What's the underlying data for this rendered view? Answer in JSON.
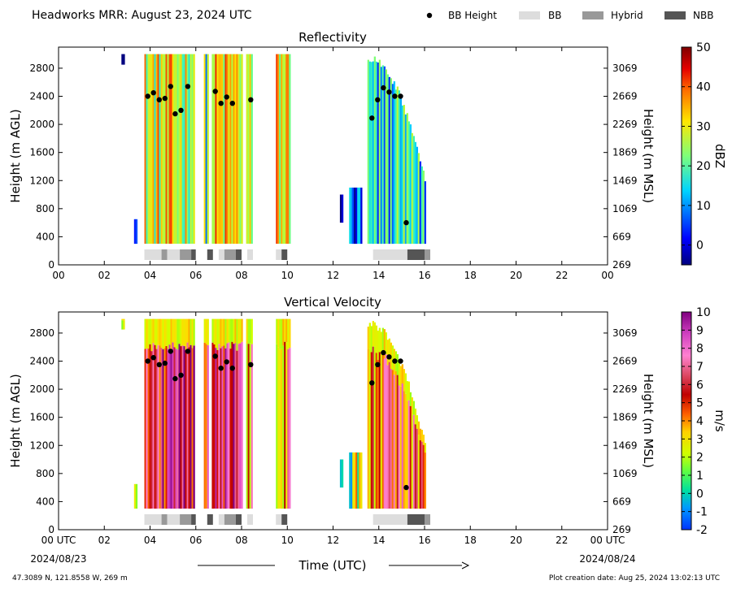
{
  "header": {
    "title": "Headworks MRR:  August 23, 2024 UTC"
  },
  "legend": [
    {
      "label": "BB Height",
      "kind": "dot",
      "color": "#000000"
    },
    {
      "label": "BB",
      "kind": "box",
      "color": "#dddddd"
    },
    {
      "label": "Hybrid",
      "kind": "box",
      "color": "#999999"
    },
    {
      "label": "NBB",
      "kind": "box",
      "color": "#555555"
    }
  ],
  "footer": {
    "location": "47.3089 N, 121.8558 W, 269 m",
    "creation": "Plot creation date: Aug 25, 2024 13:02:13 UTC",
    "xaxis_title": "Time (UTC)",
    "date_start": "2024/08/23",
    "date_end": "2024/08/24"
  },
  "chart_data": [
    {
      "type": "heatmap",
      "title": "Reflectivity",
      "ylabel": "Height (m AGL)",
      "ylabel_right": "Height (m MSL)",
      "x_ticks": [
        "00",
        "02",
        "04",
        "06",
        "08",
        "10",
        "12",
        "14",
        "16",
        "18",
        "20",
        "22",
        "00"
      ],
      "y_ticks": [
        "0",
        "400",
        "800",
        "1200",
        "1600",
        "2000",
        "2400",
        "2800"
      ],
      "y_ticks_right": [
        "269",
        "669",
        "1069",
        "1469",
        "1869",
        "2269",
        "2669",
        "3069"
      ],
      "xlim": [
        0,
        24
      ],
      "ylim": [
        0,
        3100
      ],
      "colorbar": {
        "label": "dBZ",
        "ticks": [
          "0",
          "10",
          "20",
          "30",
          "40",
          "50"
        ],
        "range": [
          -5,
          50
        ]
      },
      "bb_height_points": [
        {
          "x": 3.9,
          "y": 2400
        },
        {
          "x": 4.15,
          "y": 2450
        },
        {
          "x": 4.4,
          "y": 2350
        },
        {
          "x": 4.65,
          "y": 2370
        },
        {
          "x": 4.9,
          "y": 2540
        },
        {
          "x": 5.1,
          "y": 2150
        },
        {
          "x": 5.35,
          "y": 2200
        },
        {
          "x": 5.65,
          "y": 2540
        },
        {
          "x": 6.85,
          "y": 2470
        },
        {
          "x": 7.1,
          "y": 2300
        },
        {
          "x": 7.35,
          "y": 2390
        },
        {
          "x": 7.6,
          "y": 2300
        },
        {
          "x": 8.4,
          "y": 2350
        },
        {
          "x": 13.7,
          "y": 2090
        },
        {
          "x": 13.95,
          "y": 2350
        },
        {
          "x": 14.2,
          "y": 2520
        },
        {
          "x": 14.45,
          "y": 2460
        },
        {
          "x": 14.7,
          "y": 2400
        },
        {
          "x": 14.95,
          "y": 2400
        },
        {
          "x": 15.2,
          "y": 600
        }
      ],
      "rain_type_segments": [
        {
          "start": 3.75,
          "end": 4.5,
          "class": "BB"
        },
        {
          "start": 4.5,
          "end": 4.75,
          "class": "Hybrid"
        },
        {
          "start": 4.75,
          "end": 5.3,
          "class": "BB"
        },
        {
          "start": 5.3,
          "end": 5.8,
          "class": "Hybrid"
        },
        {
          "start": 5.8,
          "end": 6.0,
          "class": "NBB"
        },
        {
          "start": 6.5,
          "end": 6.75,
          "class": "NBB"
        },
        {
          "start": 7.0,
          "end": 7.25,
          "class": "BB"
        },
        {
          "start": 7.25,
          "end": 7.75,
          "class": "Hybrid"
        },
        {
          "start": 7.75,
          "end": 8.0,
          "class": "NBB"
        },
        {
          "start": 8.25,
          "end": 8.5,
          "class": "BB"
        },
        {
          "start": 9.5,
          "end": 9.75,
          "class": "BB"
        },
        {
          "start": 9.75,
          "end": 10.0,
          "class": "NBB"
        },
        {
          "start": 13.75,
          "end": 15.25,
          "class": "BB"
        },
        {
          "start": 15.25,
          "end": 16.0,
          "class": "NBB"
        },
        {
          "start": 16.0,
          "end": 16.25,
          "class": "Hybrid"
        }
      ],
      "precip_bands": [
        {
          "start": 2.75,
          "end": 2.85,
          "ybot": 2850,
          "ytop": 3000,
          "mid": 2
        },
        {
          "start": 3.3,
          "end": 3.4,
          "ybot": 300,
          "ytop": 650,
          "mid": 0
        },
        {
          "start": 3.75,
          "end": 5.95,
          "ybot": 300,
          "ytop": 3000,
          "mid": 26
        },
        {
          "start": 6.35,
          "end": 6.55,
          "ybot": 300,
          "ytop": 3000,
          "mid": 18
        },
        {
          "start": 6.7,
          "end": 8.0,
          "ybot": 300,
          "ytop": 3000,
          "mid": 28
        },
        {
          "start": 8.2,
          "end": 8.45,
          "ybot": 300,
          "ytop": 3000,
          "mid": 22
        },
        {
          "start": 9.5,
          "end": 10.1,
          "ybot": 300,
          "ytop": 3000,
          "mid": 28
        },
        {
          "start": 12.3,
          "end": 12.4,
          "ybot": 600,
          "ytop": 1000,
          "mid": 1
        },
        {
          "start": 12.7,
          "end": 13.2,
          "ybot": 300,
          "ytop": 1100,
          "mid": 2
        },
        {
          "start": 13.5,
          "end": 16.0,
          "ybot": 300,
          "ytop": 3000,
          "mid": 12
        }
      ]
    },
    {
      "type": "heatmap",
      "title": "Vertical Velocity",
      "ylabel": "Height (m AGL)",
      "ylabel_right": "Height (m MSL)",
      "x_ticks": [
        "00 UTC",
        "02",
        "04",
        "06",
        "08",
        "10",
        "12",
        "14",
        "16",
        "18",
        "20",
        "22",
        "00 UTC"
      ],
      "y_ticks": [
        "0",
        "400",
        "800",
        "1200",
        "1600",
        "2000",
        "2400",
        "2800"
      ],
      "y_ticks_right": [
        "269",
        "669",
        "1069",
        "1469",
        "1869",
        "2269",
        "2669",
        "3069"
      ],
      "xlim": [
        0,
        24
      ],
      "ylim": [
        0,
        3100
      ],
      "colorbar": {
        "label": "m/s",
        "ticks": [
          "-2",
          "-1",
          "0",
          "1",
          "2",
          "3",
          "4",
          "5",
          "6",
          "7",
          "8",
          "9",
          "10"
        ],
        "range": [
          -2,
          10
        ]
      },
      "bb_height_points": [
        {
          "x": 3.9,
          "y": 2400
        },
        {
          "x": 4.15,
          "y": 2450
        },
        {
          "x": 4.4,
          "y": 2350
        },
        {
          "x": 4.65,
          "y": 2370
        },
        {
          "x": 4.9,
          "y": 2540
        },
        {
          "x": 5.1,
          "y": 2150
        },
        {
          "x": 5.35,
          "y": 2200
        },
        {
          "x": 5.65,
          "y": 2540
        },
        {
          "x": 6.85,
          "y": 2470
        },
        {
          "x": 7.1,
          "y": 2300
        },
        {
          "x": 7.35,
          "y": 2390
        },
        {
          "x": 7.6,
          "y": 2300
        },
        {
          "x": 8.4,
          "y": 2350
        },
        {
          "x": 13.7,
          "y": 2090
        },
        {
          "x": 13.95,
          "y": 2350
        },
        {
          "x": 14.2,
          "y": 2520
        },
        {
          "x": 14.45,
          "y": 2460
        },
        {
          "x": 14.7,
          "y": 2400
        },
        {
          "x": 14.95,
          "y": 2400
        },
        {
          "x": 15.2,
          "y": 600
        }
      ],
      "rain_type_segments": [
        {
          "start": 3.75,
          "end": 4.5,
          "class": "BB"
        },
        {
          "start": 4.5,
          "end": 4.75,
          "class": "Hybrid"
        },
        {
          "start": 4.75,
          "end": 5.3,
          "class": "BB"
        },
        {
          "start": 5.3,
          "end": 5.8,
          "class": "Hybrid"
        },
        {
          "start": 5.8,
          "end": 6.0,
          "class": "NBB"
        },
        {
          "start": 6.5,
          "end": 6.75,
          "class": "NBB"
        },
        {
          "start": 7.0,
          "end": 7.25,
          "class": "BB"
        },
        {
          "start": 7.25,
          "end": 7.75,
          "class": "Hybrid"
        },
        {
          "start": 7.75,
          "end": 8.0,
          "class": "NBB"
        },
        {
          "start": 8.25,
          "end": 8.5,
          "class": "BB"
        },
        {
          "start": 9.5,
          "end": 9.75,
          "class": "BB"
        },
        {
          "start": 9.75,
          "end": 10.0,
          "class": "NBB"
        },
        {
          "start": 13.75,
          "end": 15.25,
          "class": "BB"
        },
        {
          "start": 15.25,
          "end": 16.0,
          "class": "NBB"
        },
        {
          "start": 16.0,
          "end": 16.25,
          "class": "Hybrid"
        }
      ],
      "precip_bands": [
        {
          "start": 2.75,
          "end": 2.85,
          "ybot": 2850,
          "ytop": 3000,
          "mid": 1
        },
        {
          "start": 3.3,
          "end": 3.4,
          "ybot": 300,
          "ytop": 650,
          "mid": 3
        },
        {
          "start": 3.75,
          "end": 5.95,
          "ybot": 300,
          "ytop": 3000,
          "mid": 7
        },
        {
          "start": 6.35,
          "end": 6.55,
          "ybot": 300,
          "ytop": 3000,
          "mid": 6
        },
        {
          "start": 6.7,
          "end": 8.0,
          "ybot": 300,
          "ytop": 3000,
          "mid": 7
        },
        {
          "start": 8.2,
          "end": 8.45,
          "ybot": 300,
          "ytop": 3000,
          "mid": 5
        },
        {
          "start": 9.5,
          "end": 10.1,
          "ybot": 300,
          "ytop": 3000,
          "mid": 5
        },
        {
          "start": 12.3,
          "end": 12.4,
          "ybot": 600,
          "ytop": 1000,
          "mid": 2
        },
        {
          "start": 12.7,
          "end": 13.2,
          "ybot": 300,
          "ytop": 1100,
          "mid": 2
        },
        {
          "start": 13.5,
          "end": 16.0,
          "ybot": 300,
          "ytop": 3000,
          "mid": 5
        }
      ]
    }
  ]
}
